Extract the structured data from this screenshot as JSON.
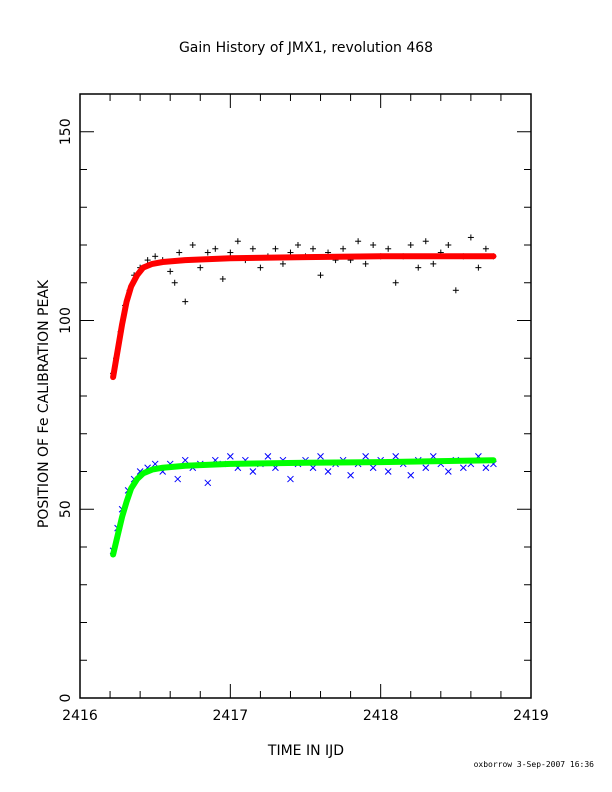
{
  "chart_data": {
    "type": "scatter",
    "title": "Gain History of JMX1, revolution 468",
    "xlabel": "TIME IN IJD",
    "ylabel": "POSITION OF Fe CALIBRATION PEAK",
    "xlim": [
      2416,
      2419
    ],
    "ylim": [
      0,
      160
    ],
    "x_ticks": [
      "2416",
      "2417",
      "2418",
      "2419"
    ],
    "y_ticks": [
      "0",
      "50",
      "100",
      "150"
    ],
    "grid": false,
    "legend": "none",
    "series": [
      {
        "marker": "plus",
        "color": "#000000",
        "points": [
          [
            2416.22,
            86
          ],
          [
            2416.24,
            90
          ],
          [
            2416.27,
            97
          ],
          [
            2416.3,
            104
          ],
          [
            2416.33,
            108
          ],
          [
            2416.36,
            112
          ],
          [
            2416.4,
            114
          ],
          [
            2416.45,
            116
          ],
          [
            2416.5,
            117
          ],
          [
            2416.55,
            116
          ],
          [
            2416.6,
            113
          ],
          [
            2416.63,
            110
          ],
          [
            2416.66,
            118
          ],
          [
            2416.7,
            105
          ],
          [
            2416.75,
            120
          ],
          [
            2416.8,
            114
          ],
          [
            2416.85,
            118
          ],
          [
            2416.9,
            119
          ],
          [
            2416.95,
            111
          ],
          [
            2417.0,
            118
          ],
          [
            2417.05,
            121
          ],
          [
            2417.1,
            116
          ],
          [
            2417.15,
            119
          ],
          [
            2417.2,
            114
          ],
          [
            2417.25,
            117
          ],
          [
            2417.3,
            119
          ],
          [
            2417.35,
            115
          ],
          [
            2417.4,
            118
          ],
          [
            2417.45,
            120
          ],
          [
            2417.5,
            117
          ],
          [
            2417.55,
            119
          ],
          [
            2417.6,
            112
          ],
          [
            2417.65,
            118
          ],
          [
            2417.7,
            116
          ],
          [
            2417.75,
            119
          ],
          [
            2417.8,
            116
          ],
          [
            2417.85,
            121
          ],
          [
            2417.9,
            115
          ],
          [
            2417.95,
            120
          ],
          [
            2418.0,
            117
          ],
          [
            2418.05,
            119
          ],
          [
            2418.1,
            110
          ],
          [
            2418.15,
            117
          ],
          [
            2418.2,
            120
          ],
          [
            2418.25,
            114
          ],
          [
            2418.3,
            121
          ],
          [
            2418.35,
            115
          ],
          [
            2418.4,
            118
          ],
          [
            2418.45,
            120
          ],
          [
            2418.5,
            108
          ],
          [
            2418.55,
            117
          ],
          [
            2418.6,
            122
          ],
          [
            2418.65,
            114
          ],
          [
            2418.7,
            119
          ],
          [
            2418.75,
            117
          ]
        ]
      },
      {
        "marker": "cross",
        "color": "#0000ff",
        "points": [
          [
            2416.22,
            39
          ],
          [
            2416.25,
            45
          ],
          [
            2416.28,
            50
          ],
          [
            2416.32,
            55
          ],
          [
            2416.36,
            58
          ],
          [
            2416.4,
            60
          ],
          [
            2416.45,
            61
          ],
          [
            2416.5,
            62
          ],
          [
            2416.55,
            60
          ],
          [
            2416.6,
            62
          ],
          [
            2416.65,
            58
          ],
          [
            2416.7,
            63
          ],
          [
            2416.75,
            61
          ],
          [
            2416.8,
            62
          ],
          [
            2416.85,
            57
          ],
          [
            2416.9,
            63
          ],
          [
            2416.95,
            62
          ],
          [
            2417.0,
            64
          ],
          [
            2417.05,
            61
          ],
          [
            2417.1,
            63
          ],
          [
            2417.15,
            60
          ],
          [
            2417.2,
            62
          ],
          [
            2417.25,
            64
          ],
          [
            2417.3,
            61
          ],
          [
            2417.35,
            63
          ],
          [
            2417.4,
            58
          ],
          [
            2417.45,
            62
          ],
          [
            2417.5,
            63
          ],
          [
            2417.55,
            61
          ],
          [
            2417.6,
            64
          ],
          [
            2417.65,
            60
          ],
          [
            2417.7,
            62
          ],
          [
            2417.75,
            63
          ],
          [
            2417.8,
            59
          ],
          [
            2417.85,
            62
          ],
          [
            2417.9,
            64
          ],
          [
            2417.95,
            61
          ],
          [
            2418.0,
            63
          ],
          [
            2418.05,
            60
          ],
          [
            2418.1,
            64
          ],
          [
            2418.15,
            62
          ],
          [
            2418.2,
            59
          ],
          [
            2418.25,
            63
          ],
          [
            2418.3,
            61
          ],
          [
            2418.35,
            64
          ],
          [
            2418.4,
            62
          ],
          [
            2418.45,
            60
          ],
          [
            2418.5,
            63
          ],
          [
            2418.55,
            61
          ],
          [
            2418.6,
            62
          ],
          [
            2418.65,
            64
          ],
          [
            2418.7,
            61
          ],
          [
            2418.75,
            62
          ]
        ]
      },
      {
        "marker": "fit-line",
        "color": "#ff0000",
        "points": [
          [
            2416.22,
            85
          ],
          [
            2416.25,
            92
          ],
          [
            2416.28,
            99
          ],
          [
            2416.31,
            105
          ],
          [
            2416.34,
            109
          ],
          [
            2416.38,
            112
          ],
          [
            2416.42,
            114
          ],
          [
            2416.48,
            115
          ],
          [
            2416.55,
            115.5
          ],
          [
            2416.7,
            116
          ],
          [
            2417.0,
            116.5
          ],
          [
            2417.5,
            116.8
          ],
          [
            2418.0,
            117
          ],
          [
            2418.5,
            117
          ],
          [
            2418.75,
            117
          ]
        ]
      },
      {
        "marker": "fit-line",
        "color": "#00ff00",
        "points": [
          [
            2416.22,
            38
          ],
          [
            2416.25,
            43
          ],
          [
            2416.28,
            48
          ],
          [
            2416.31,
            52
          ],
          [
            2416.34,
            55.5
          ],
          [
            2416.38,
            58
          ],
          [
            2416.42,
            59.5
          ],
          [
            2416.48,
            60.5
          ],
          [
            2416.55,
            61
          ],
          [
            2416.7,
            61.5
          ],
          [
            2417.0,
            62
          ],
          [
            2417.5,
            62.3
          ],
          [
            2418.0,
            62.5
          ],
          [
            2418.5,
            62.8
          ],
          [
            2418.75,
            63
          ]
        ]
      }
    ]
  },
  "footer": "oxborrow 3-Sep-2007 16:36"
}
